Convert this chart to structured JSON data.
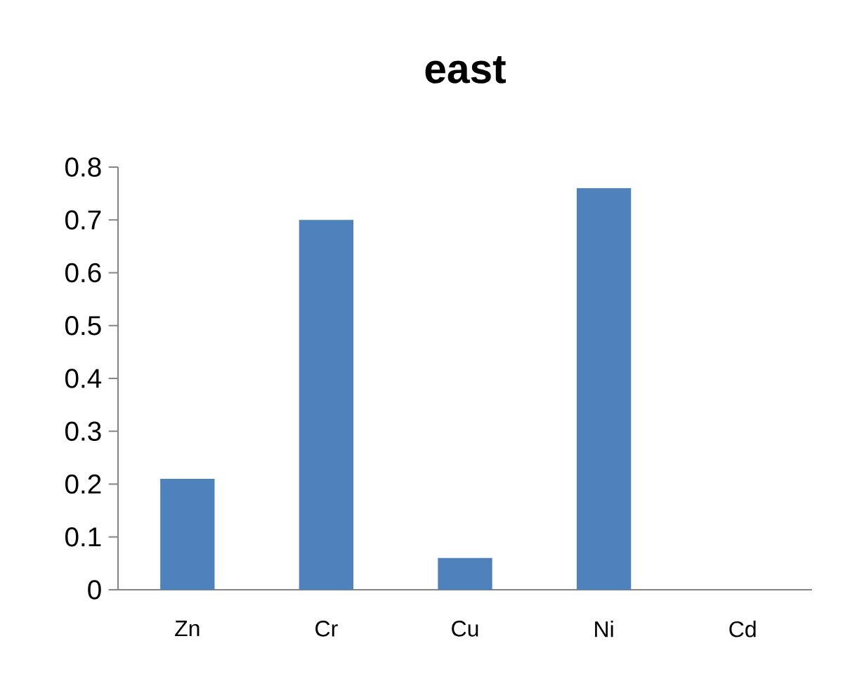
{
  "chart_data": {
    "type": "bar",
    "title": "east",
    "categories": [
      "Zn",
      "Cr",
      "Cu",
      "Ni",
      "Cd"
    ],
    "values": [
      0.21,
      0.7,
      0.06,
      0.76,
      0
    ],
    "color": "#4f81bd",
    "ylim": [
      0,
      0.8
    ],
    "yticks": [
      0,
      0.1,
      0.2,
      0.3,
      0.4,
      0.5,
      0.6,
      0.7,
      0.8
    ]
  }
}
